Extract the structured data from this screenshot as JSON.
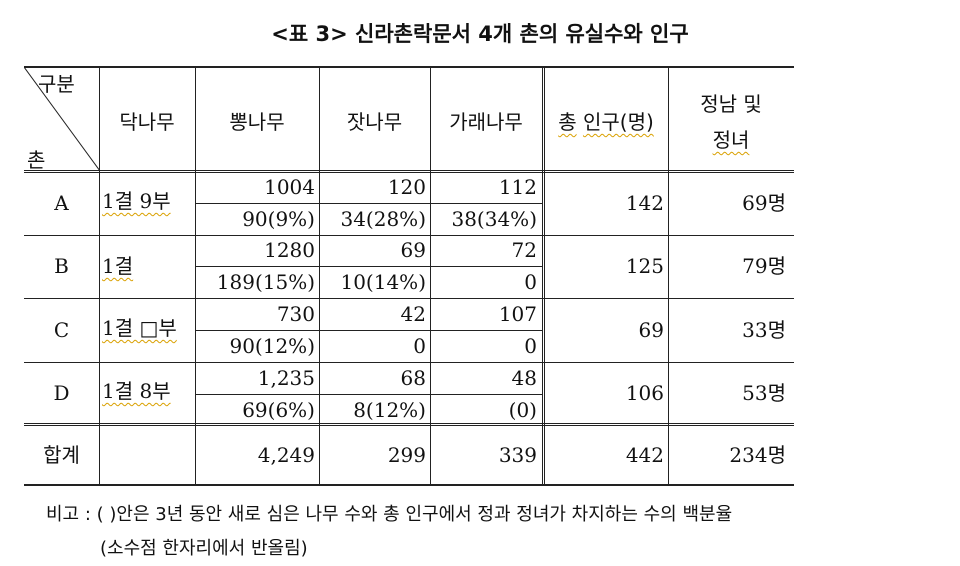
{
  "title": "<표 3> 신라촌락문서 4개 촌의 유실수와 인구",
  "header": {
    "corner_top": "구분",
    "corner_bottom": "촌",
    "col_dak": "닥나무",
    "col_ppong": "뽕나무",
    "col_jat": "잣나무",
    "col_garae": "가래나무",
    "col_total_prefix": "총",
    "col_total_rest": "인구(명)",
    "col_jeongnam_line1": "정남 및",
    "col_jeongnam_line2": "정녀"
  },
  "rows": [
    {
      "village": "A",
      "dak": "1결 9부",
      "ppong_top": "1004",
      "ppong_bottom": "90(9%)",
      "jat_top": "120",
      "jat_bottom": "34(28%)",
      "garae_top": "112",
      "garae_bottom": "38(34%)",
      "total": "142",
      "jeongnam": "69명"
    },
    {
      "village": "B",
      "dak": "1결",
      "ppong_top": "1280",
      "ppong_bottom": "189(15%)",
      "jat_top": "69",
      "jat_bottom": "10(14%)",
      "garae_top": "72",
      "garae_bottom": "0",
      "total": "125",
      "jeongnam": "79명"
    },
    {
      "village": "C",
      "dak": "1결 □부",
      "ppong_top": "730",
      "ppong_bottom": "90(12%)",
      "jat_top": "42",
      "jat_bottom": "0",
      "garae_top": "107",
      "garae_bottom": "0",
      "total": "69",
      "jeongnam": "33명"
    },
    {
      "village": "D",
      "dak": "1결 8부",
      "ppong_top": "1,235",
      "ppong_bottom": "69(6%)",
      "jat_top": "68",
      "jat_bottom": "8(12%)",
      "garae_top": "48",
      "garae_bottom": "(0)",
      "total": "106",
      "jeongnam": "53명"
    }
  ],
  "sum": {
    "label": "합계",
    "dak": "",
    "ppong": "4,249",
    "jat": "299",
    "garae": "339",
    "total": "442",
    "jeongnam": "234명"
  },
  "note": {
    "line1": "비고 : (   )안은 3년 동안 새로 심은 나무 수와 총 인구에서 정과 정녀가 차지하는 수의 백분율",
    "line2": "(소수점 한자리에서 반올림)"
  }
}
